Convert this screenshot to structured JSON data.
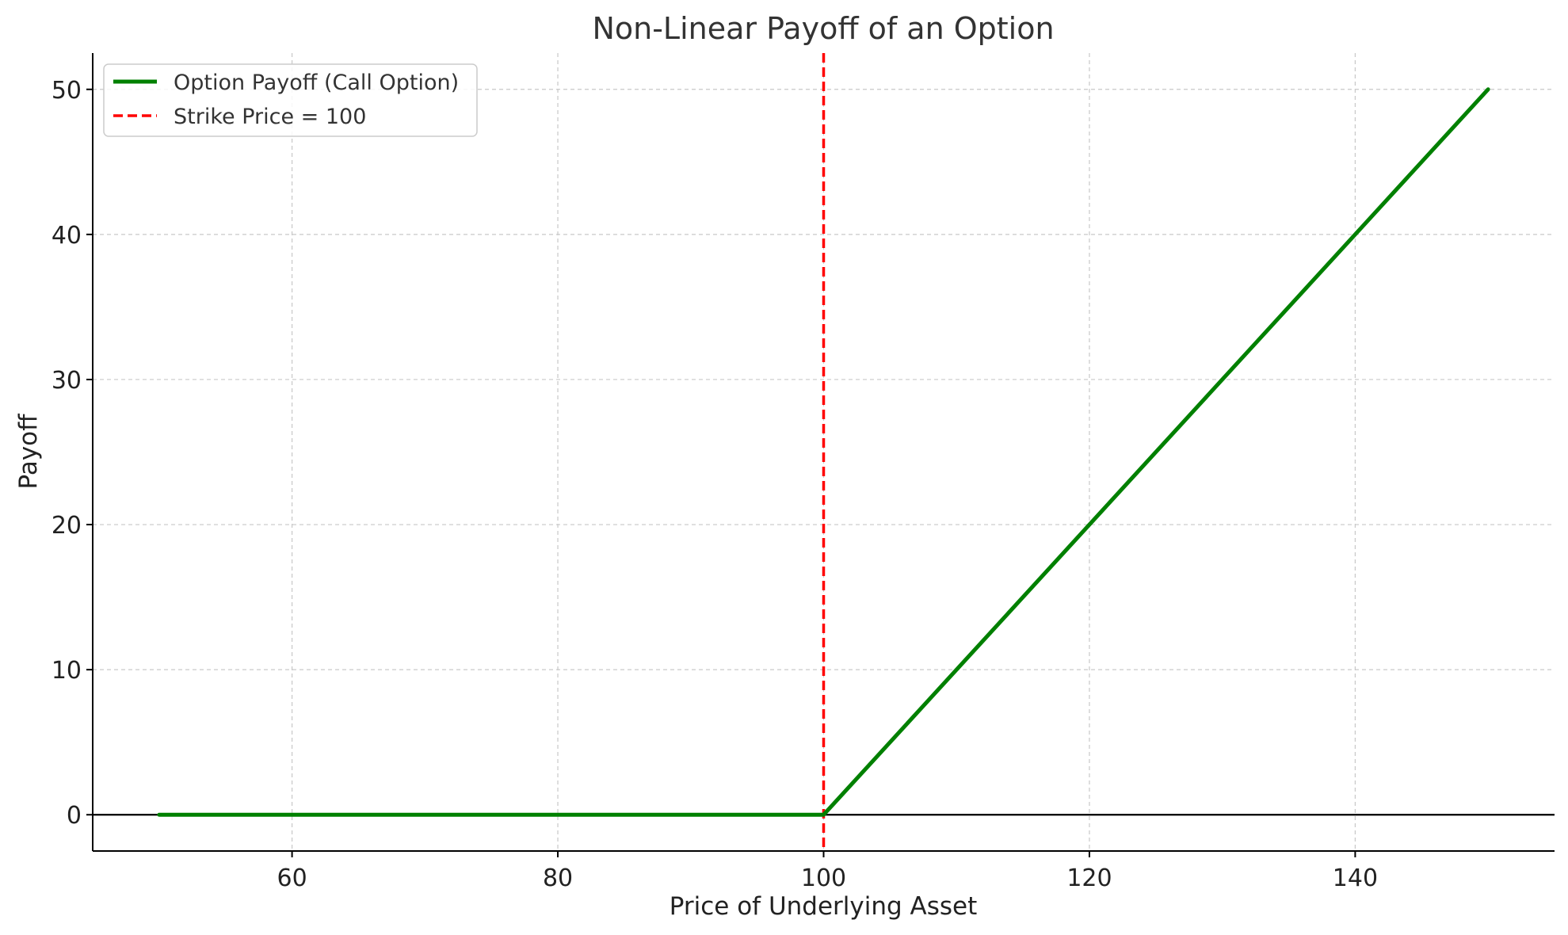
{
  "chart_data": {
    "type": "line",
    "title": "Non-Linear Payoff of an Option",
    "xlabel": "Price of Underlying Asset",
    "ylabel": "Payoff",
    "xlim": [
      45,
      155
    ],
    "ylim": [
      -2.5,
      52.5
    ],
    "xticks": [
      60,
      80,
      100,
      120,
      140
    ],
    "yticks": [
      0,
      10,
      20,
      30,
      40,
      50
    ],
    "grid": true,
    "legend_position": "top-left",
    "series": [
      {
        "name": "Option Payoff (Call Option)",
        "color": "#008000",
        "style": "solid",
        "x": [
          50,
          100,
          150
        ],
        "y": [
          0,
          0,
          50
        ]
      }
    ],
    "reference_lines": [
      {
        "name": "Strike Price = 100",
        "orientation": "vertical",
        "value": 100,
        "color": "#ff0000",
        "style": "dashed"
      },
      {
        "orientation": "horizontal",
        "value": 0,
        "color": "#000000",
        "style": "solid"
      }
    ]
  }
}
